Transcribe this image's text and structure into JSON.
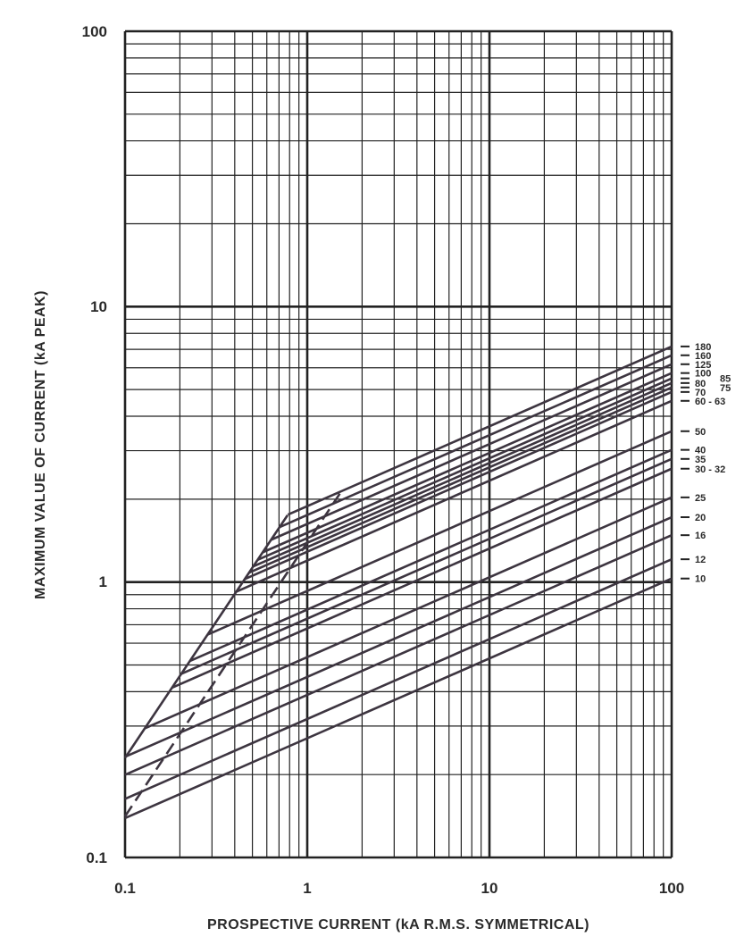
{
  "chart_data": {
    "type": "line",
    "title": "",
    "xlabel": "PROSPECTIVE CURRENT (kA R.M.S. SYMMETRICAL)",
    "ylabel": "MAXIMUM VALUE OF CURRENT (kA PEAK)",
    "xscale": "log",
    "yscale": "log",
    "xlim": [
      0.1,
      100
    ],
    "ylim": [
      0.1,
      100
    ],
    "grid": true,
    "x_ticks": [
      "0.1",
      "1",
      "10",
      "100"
    ],
    "y_ticks": [
      "0.1",
      "1",
      "10",
      "100"
    ],
    "line_color": "#3d3540",
    "series_note_slope": 0.29,
    "series": [
      {
        "name": "180",
        "end_value_at_100kA": 7.17
      },
      {
        "name": "160",
        "end_value_at_100kA": 6.66
      },
      {
        "name": "125",
        "end_value_at_100kA": 6.18
      },
      {
        "name": "100",
        "end_value_at_100kA": 5.74
      },
      {
        "name": "85",
        "end_value_at_100kA": 5.49
      },
      {
        "name": "80",
        "end_value_at_100kA": 5.28
      },
      {
        "name": "75",
        "end_value_at_100kA": 5.09
      },
      {
        "name": "70",
        "end_value_at_100kA": 4.9
      },
      {
        "name": "60 - 63",
        "end_value_at_100kA": 4.55
      },
      {
        "name": "50",
        "end_value_at_100kA": 3.53
      },
      {
        "name": "40",
        "end_value_at_100kA": 3.02
      },
      {
        "name": "35",
        "end_value_at_100kA": 2.8
      },
      {
        "name": "30 - 32",
        "end_value_at_100kA": 2.58
      },
      {
        "name": "25",
        "end_value_at_100kA": 2.03
      },
      {
        "name": "20",
        "end_value_at_100kA": 1.72
      },
      {
        "name": "16",
        "end_value_at_100kA": 1.48
      },
      {
        "name": "12",
        "end_value_at_100kA": 1.21
      },
      {
        "name": "10",
        "end_value_at_100kA": 1.03
      }
    ],
    "envelope": {
      "x": [
        0.1,
        0.78
      ],
      "y": [
        0.23,
        1.75
      ],
      "style": "solid"
    },
    "dashed_line": {
      "x": [
        0.1,
        1.55
      ],
      "y": [
        0.141,
        2.15
      ],
      "style": "dashed"
    }
  }
}
